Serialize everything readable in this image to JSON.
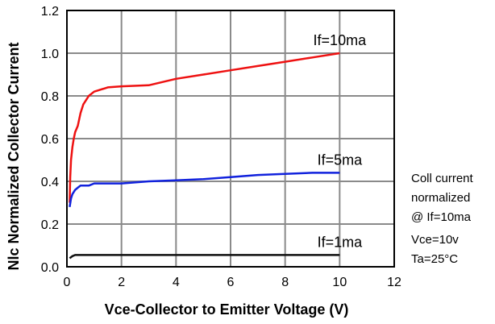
{
  "chart_data": {
    "type": "line",
    "xlabel": "Vce-Collector to Emitter Voltage (V)",
    "ylabel": "Nlc Normalized Collector Current",
    "xlim": [
      0,
      12
    ],
    "ylim": [
      0,
      1.2
    ],
    "x_ticks": [
      "0",
      "2",
      "4",
      "6",
      "8",
      "10",
      "12"
    ],
    "y_ticks": [
      "0.0",
      "0.2",
      "0.4",
      "0.6",
      "0.8",
      "1.0",
      "1.2"
    ],
    "grid": true,
    "series": [
      {
        "name": "If=10ma",
        "color": "#ee1111",
        "x": [
          0.1,
          0.12,
          0.15,
          0.2,
          0.25,
          0.3,
          0.4,
          0.5,
          0.6,
          0.7,
          0.8,
          1.0,
          1.5,
          2.0,
          3.0,
          4.0,
          5.0,
          6.0,
          7.0,
          8.0,
          9.0,
          10.0
        ],
        "y": [
          0.3,
          0.42,
          0.5,
          0.56,
          0.6,
          0.63,
          0.66,
          0.72,
          0.76,
          0.78,
          0.8,
          0.82,
          0.84,
          0.845,
          0.85,
          0.88,
          0.9,
          0.92,
          0.94,
          0.96,
          0.98,
          1.0
        ]
      },
      {
        "name": "If=5ma",
        "color": "#1122dd",
        "x": [
          0.1,
          0.15,
          0.2,
          0.3,
          0.4,
          0.5,
          0.6,
          0.8,
          1.0,
          1.5,
          2.0,
          3.0,
          4.0,
          5.0,
          6.0,
          7.0,
          8.0,
          9.0,
          10.0
        ],
        "y": [
          0.28,
          0.32,
          0.34,
          0.36,
          0.37,
          0.38,
          0.38,
          0.38,
          0.39,
          0.39,
          0.39,
          0.4,
          0.405,
          0.41,
          0.42,
          0.43,
          0.435,
          0.44,
          0.44
        ]
      },
      {
        "name": "If=1ma",
        "color": "#111111",
        "x": [
          0.1,
          0.15,
          0.2,
          0.3,
          0.5,
          1.0,
          2.0,
          4.0,
          6.0,
          8.0,
          10.0
        ],
        "y": [
          0.04,
          0.045,
          0.05,
          0.055,
          0.055,
          0.055,
          0.055,
          0.055,
          0.055,
          0.055,
          0.055
        ]
      }
    ],
    "annotations": [
      "Coll current",
      "normalized",
      "@  If=10ma",
      "Vce=10v",
      "Ta=25°C"
    ]
  }
}
